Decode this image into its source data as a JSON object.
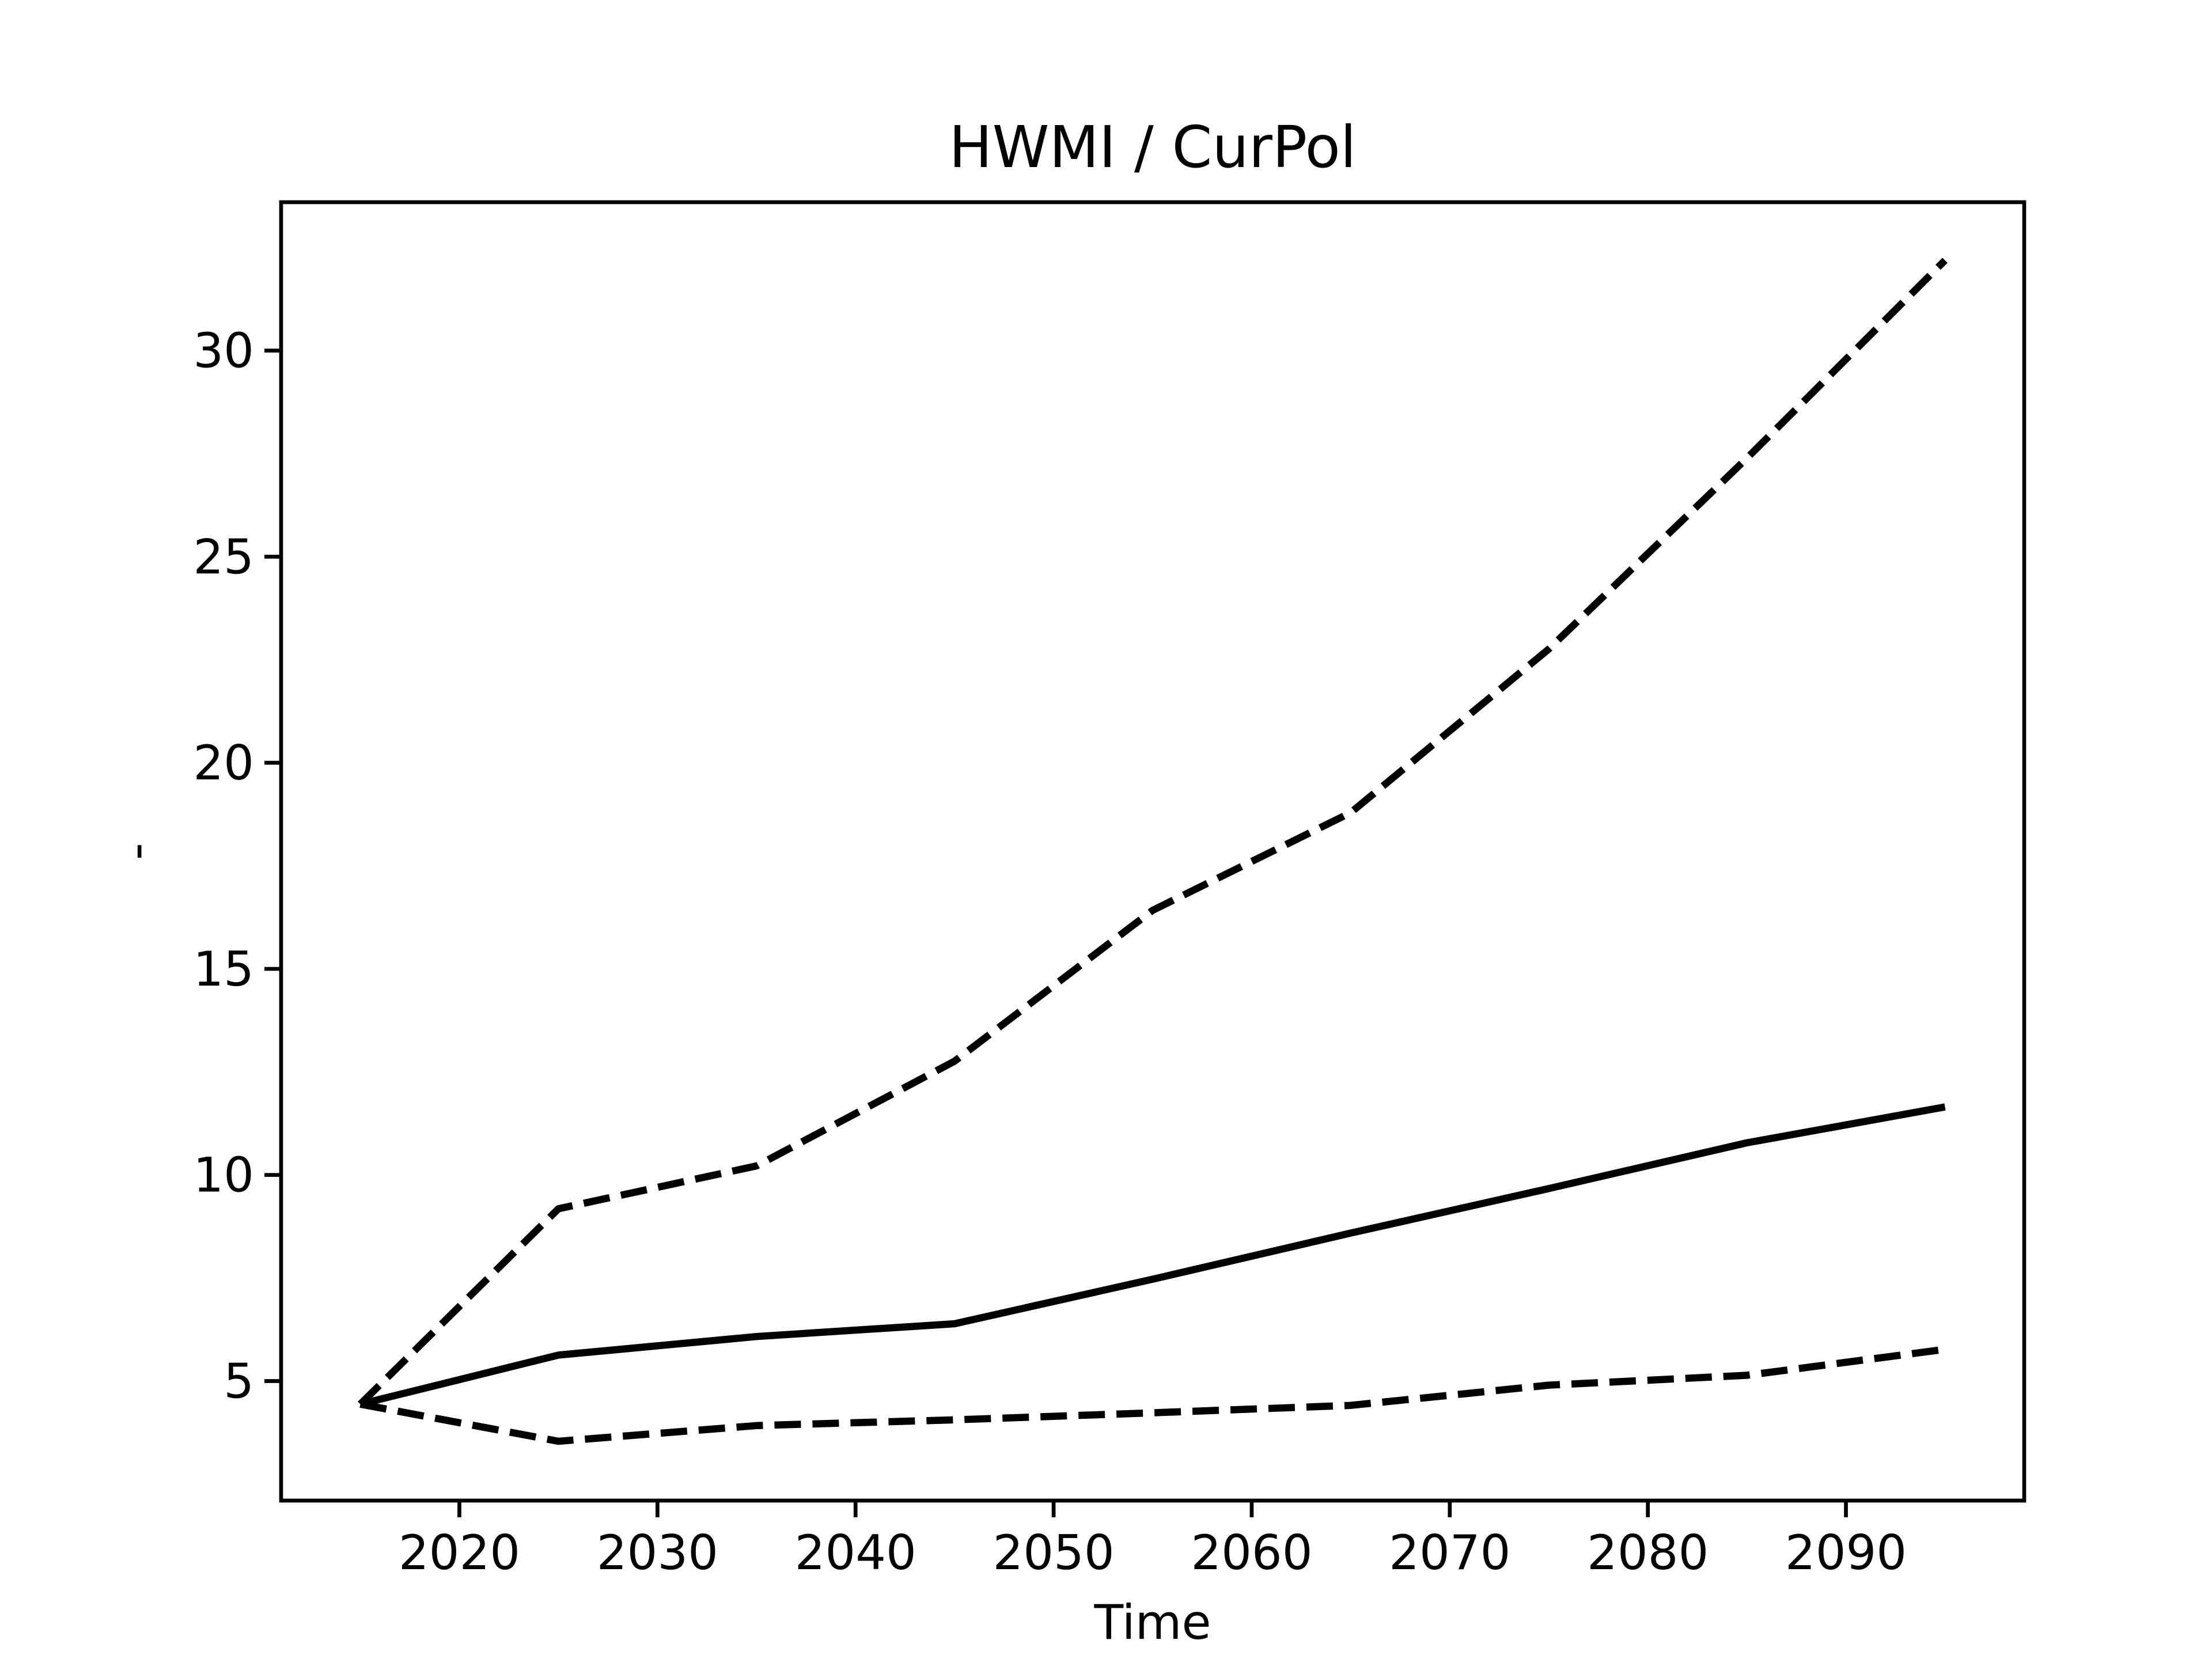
{
  "chart_data": {
    "type": "line",
    "title": "HWMI / CurPol",
    "xlabel": "Time",
    "ylabel": "-",
    "x": [
      2015,
      2025,
      2035,
      2045,
      2055,
      2065,
      2075,
      2085,
      2095
    ],
    "series": [
      {
        "color": "#000000",
        "linestyle": "solid",
        "values": [
          4.44,
          5.63,
          6.08,
          6.39,
          7.47,
          8.59,
          9.67,
          10.78,
          11.65
        ]
      },
      {
        "color": "#000000",
        "linestyle": "dashed",
        "values": [
          4.44,
          9.18,
          10.22,
          12.76,
          16.42,
          18.79,
          22.76,
          27.39,
          32.19
        ]
      },
      {
        "color": "#000000",
        "linestyle": "dashed",
        "values": [
          4.44,
          3.54,
          3.92,
          4.06,
          4.23,
          4.41,
          4.9,
          5.14,
          5.77
        ]
      }
    ],
    "xlim": [
      2011,
      2099
    ],
    "ylim": [
      2.1,
      33.6
    ],
    "xticks": [
      2020,
      2030,
      2040,
      2050,
      2060,
      2070,
      2080,
      2090
    ],
    "yticks": [
      5,
      10,
      15,
      20,
      25,
      30
    ],
    "grid": false
  }
}
